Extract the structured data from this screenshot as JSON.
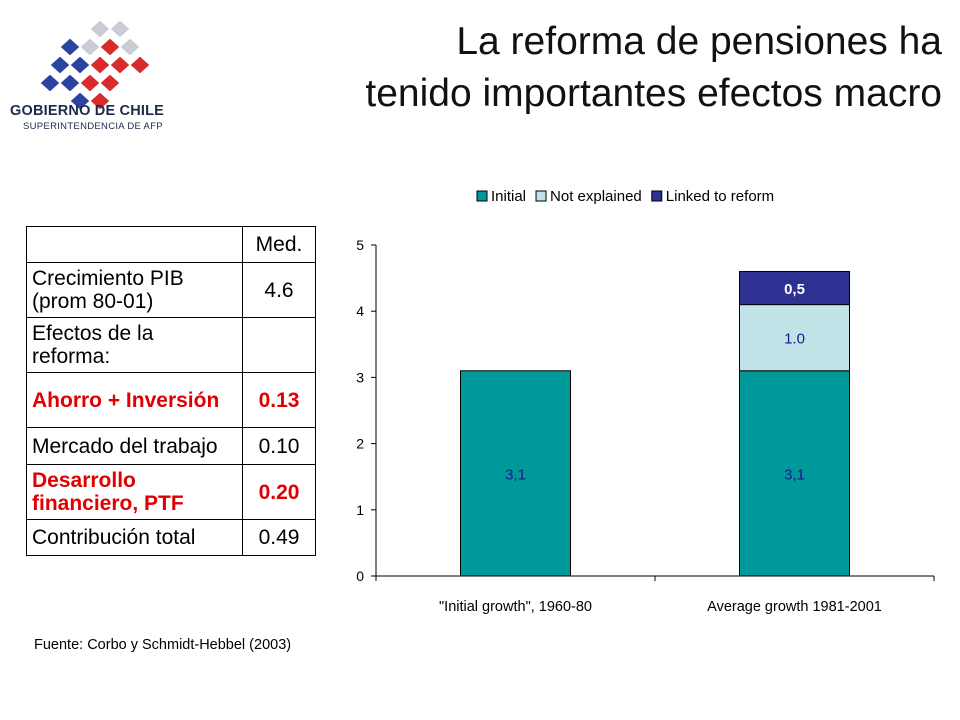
{
  "logo": {
    "line1": "GOBIERNO DE CHILE",
    "line2": "SUPERINTENDENCIA DE AFP"
  },
  "title": {
    "line1": "La reforma de pensiones ha",
    "line2": "tenido importantes efectos macro"
  },
  "table": {
    "header": {
      "label": "",
      "value": "Med."
    },
    "rows": [
      {
        "label": "Crecimiento PIB (prom 80-01)",
        "value": "4.6",
        "highlight": false
      },
      {
        "label": "Efectos de la reforma:",
        "value": "",
        "highlight": false
      },
      {
        "label": "Ahorro + Inversión",
        "value": "0.13",
        "highlight": true
      },
      {
        "label": "Mercado del trabajo",
        "value": "0.10",
        "highlight": false
      },
      {
        "label": "Desarrollo financiero, PTF",
        "value": "0.20",
        "highlight": true
      },
      {
        "label": "Contribución total",
        "value": "0.49",
        "highlight": false
      }
    ],
    "highlight_color": "#e00000"
  },
  "source": "Fuente: Corbo y Schmidt-Hebbel (2003)",
  "chart_data": {
    "type": "bar",
    "stacked": true,
    "categories": [
      "\"Initial growth\", 1960-80",
      "Average growth 1981-2001"
    ],
    "series": [
      {
        "name": "Initial",
        "values": [
          3.1,
          3.1
        ],
        "labels": [
          "3,1",
          "3,1"
        ],
        "color": "#009999"
      },
      {
        "name": "Not explained",
        "values": [
          0,
          1.0
        ],
        "labels": [
          "",
          "1.0"
        ],
        "color": "#bfe3e6"
      },
      {
        "name": "Linked to reform",
        "values": [
          0,
          0.5
        ],
        "labels": [
          "",
          "0,5"
        ],
        "color": "#2e3192"
      }
    ],
    "ylim": [
      0,
      5
    ],
    "yticks": [
      "0",
      "1",
      "2",
      "3",
      "4",
      "5"
    ],
    "legend_position": "top",
    "grid": false
  }
}
